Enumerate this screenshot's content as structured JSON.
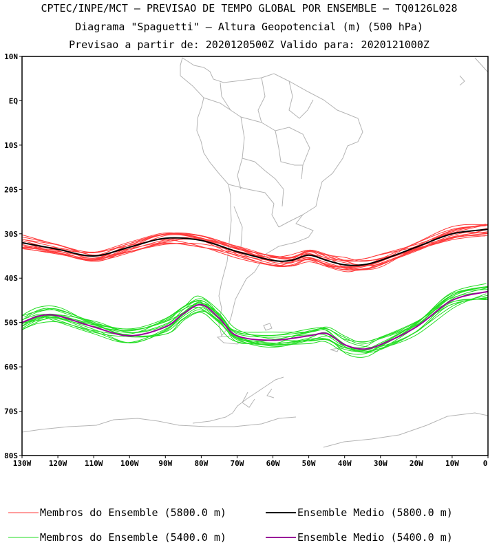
{
  "header": {
    "line1": "CPTEC/INPE/MCT – PREVISAO DE TEMPO GLOBAL POR ENSEMBLE – TQ0126L028",
    "line2": "Diagrama \"Spaguetti\" – Altura Geopotencial (m) (500 hPa)",
    "line3": "Previsao a partir de: 2020120500Z   Valido para: 2020121000Z"
  },
  "axes": {
    "lat_labels": [
      "10N",
      "EQ",
      "10S",
      "20S",
      "30S",
      "40S",
      "50S",
      "60S",
      "70S",
      "80S"
    ],
    "lon_labels": [
      "130W",
      "120W",
      "110W",
      "100W",
      "90W",
      "80W",
      "70W",
      "60W",
      "50W",
      "40W",
      "30W",
      "20W",
      "10W",
      "0"
    ]
  },
  "legend": {
    "items": [
      {
        "label": "Membros do Ensemble (5800.0 m)",
        "color": "#ff3b3b"
      },
      {
        "label": "Ensemble Medio (5800.0 m)",
        "color": "#000000"
      },
      {
        "label": "Membros do Ensemble (5400.0 m)",
        "color": "#22dd22"
      },
      {
        "label": "Ensemble Medio (5400.0 m)",
        "color": "#990099"
      }
    ]
  },
  "colors": {
    "coastline": "#b4b4b4",
    "member_5800": "#ff3b3b",
    "mean_5800": "#000000",
    "member_5400": "#22dd22",
    "mean_5400": "#990099"
  },
  "chart_data": {
    "type": "line",
    "map_extent": {
      "lon": [
        -130,
        0
      ],
      "lat": [
        -80,
        10
      ]
    },
    "series": [
      {
        "name": "Ensemble Medio (5800.0 m)",
        "color": "#000000",
        "lon": [
          -130,
          -120,
          -110,
          -100,
          -90,
          -80,
          -70,
          -60,
          -55,
          -50,
          -45,
          -40,
          -35,
          -30,
          -20,
          -10,
          0
        ],
        "lat": [
          -32,
          -33.5,
          -35,
          -33,
          -31,
          -31.5,
          -34,
          -36,
          -36,
          -34.8,
          -36,
          -37,
          -37,
          -36,
          -33,
          -30,
          -29
        ]
      },
      {
        "name": "Ensemble Medio (5400.0 m)",
        "color": "#990099",
        "lon": [
          -130,
          -125,
          -120,
          -110,
          -100,
          -90,
          -85,
          -80,
          -75,
          -70,
          -60,
          -50,
          -45,
          -40,
          -35,
          -30,
          -20,
          -10,
          0
        ],
        "lat": [
          -50,
          -48.5,
          -48.5,
          -51,
          -53,
          -51,
          -48,
          -46,
          -49,
          -53,
          -54,
          -53,
          -52.5,
          -55,
          -56,
          -55,
          -51,
          -45,
          -43
        ]
      }
    ]
  }
}
